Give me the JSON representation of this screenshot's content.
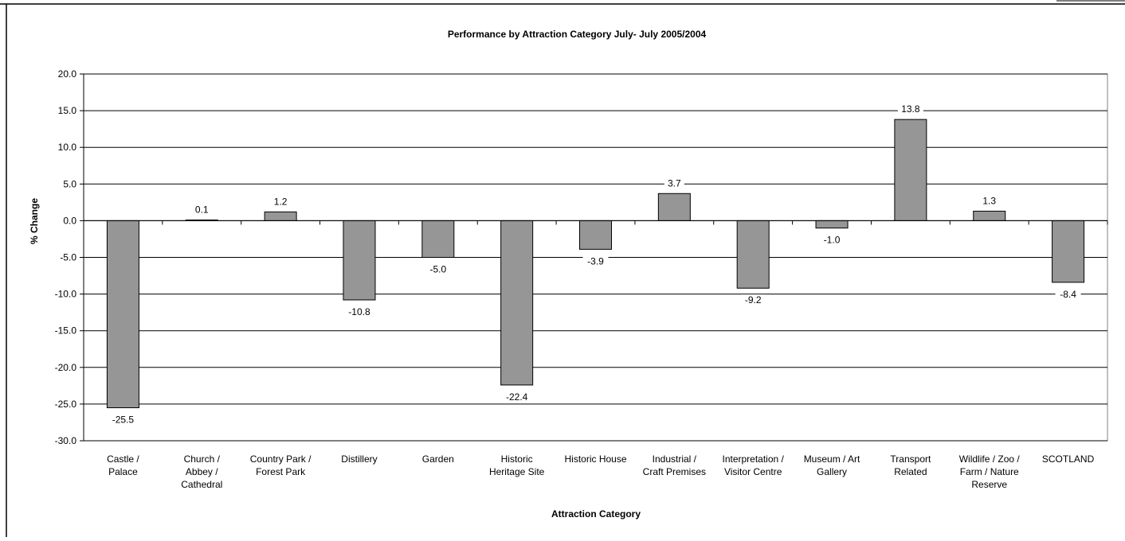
{
  "chart_data": {
    "type": "bar",
    "title": "Performance by Attraction Category July- July 2005/2004",
    "xlabel": "Attraction Category",
    "ylabel": "% Change",
    "ylim": [
      -30,
      20
    ],
    "ytick_step": 5,
    "grid": true,
    "legend": "none",
    "bar_color": "#969696",
    "categories": [
      [
        "Castle /",
        "Palace"
      ],
      [
        "Church /",
        "Abbey /",
        "Cathedral"
      ],
      [
        "Country Park /",
        "Forest Park"
      ],
      [
        "Distillery"
      ],
      [
        "Garden"
      ],
      [
        "Historic",
        "Heritage Site"
      ],
      [
        "Historic House"
      ],
      [
        "Industrial /",
        "Craft Premises"
      ],
      [
        "Interpretation /",
        "Visitor Centre"
      ],
      [
        "Museum / Art",
        "Gallery"
      ],
      [
        "Transport",
        "Related"
      ],
      [
        "Wildlife / Zoo /",
        "Farm / Nature",
        "Reserve"
      ],
      [
        "SCOTLAND"
      ]
    ],
    "values": [
      -25.5,
      0.1,
      1.2,
      -10.8,
      -5.0,
      -22.4,
      -3.9,
      3.7,
      -9.2,
      -1.0,
      13.8,
      1.3,
      -8.4
    ],
    "value_labels": [
      "-25.5",
      "0.1",
      "1.2",
      "-10.8",
      "-5.0",
      "-22.4",
      "-3.9",
      "3.7",
      "-9.2",
      "-1.0",
      "13.8",
      "1.3",
      "-8.4"
    ]
  }
}
